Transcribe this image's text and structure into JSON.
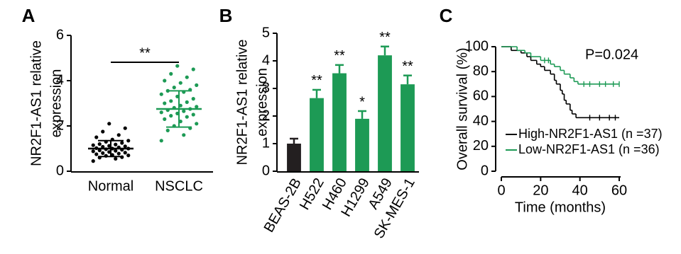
{
  "chart_data": [
    {
      "type": "dot",
      "panel": "A",
      "ylabel": [
        "NR2F1-AS1 relative",
        "expression"
      ],
      "categories": [
        "Normal",
        "NSCLC"
      ],
      "colors": [
        "#000000",
        "#1d9a55"
      ],
      "values": [
        [
          0.45,
          0.55,
          0.6,
          0.62,
          0.68,
          0.7,
          0.72,
          0.75,
          0.78,
          0.8,
          0.82,
          0.85,
          0.88,
          0.9,
          0.92,
          0.95,
          0.97,
          1.0,
          1.0,
          1.02,
          1.05,
          1.08,
          1.1,
          1.12,
          1.15,
          1.18,
          1.2,
          1.25,
          1.3,
          1.35,
          1.4,
          1.5,
          1.6,
          1.75,
          1.9,
          2.1
        ],
        [
          1.35,
          1.6,
          1.8,
          1.9,
          2.0,
          2.1,
          2.2,
          2.3,
          2.4,
          2.45,
          2.5,
          2.55,
          2.6,
          2.65,
          2.7,
          2.75,
          2.8,
          2.85,
          2.9,
          3.0,
          3.05,
          3.1,
          3.2,
          3.3,
          3.4,
          3.5,
          3.55,
          3.6,
          3.7,
          3.8,
          3.9,
          4.0,
          4.15,
          4.3,
          4.5,
          4.65
        ]
      ],
      "means": [
        1.0,
        2.75
      ],
      "sds": [
        0.35,
        0.8
      ],
      "annotation": "**",
      "ylim": [
        0,
        6
      ],
      "yticks": [
        0,
        2,
        4,
        6
      ]
    },
    {
      "type": "bar",
      "panel": "B",
      "ylabel": [
        "NR2F1-AS1 relative",
        "expression"
      ],
      "categories": [
        "BEAS-2B",
        "H522",
        "H460",
        "H1299",
        "A549",
        "SK-MES-1"
      ],
      "values": [
        1.0,
        2.65,
        3.55,
        1.9,
        4.2,
        3.15
      ],
      "errors": [
        0.18,
        0.3,
        0.3,
        0.28,
        0.32,
        0.32
      ],
      "colors": [
        "#231f20",
        "#1d9a55",
        "#1d9a55",
        "#1d9a55",
        "#1d9a55",
        "#1d9a55"
      ],
      "annotations": [
        null,
        "**",
        "**",
        "*",
        "**",
        "**"
      ],
      "ylim": [
        0,
        5
      ],
      "yticks": [
        0,
        1,
        2,
        3,
        4,
        5
      ]
    },
    {
      "type": "survival",
      "panel": "C",
      "xlabel": "Time (months)",
      "ylabel": "Overall survival (%)",
      "annotation": "P=0.024",
      "legend": "lower left",
      "series": [
        {
          "name": "High-NR2F1-AS1 (n =37)",
          "color": "#000000",
          "x": [
            0,
            5,
            10,
            13,
            15,
            18,
            20,
            22,
            25,
            27,
            28,
            30,
            31,
            32,
            33,
            35,
            36,
            38
          ],
          "values": [
            100,
            97,
            95,
            92,
            89,
            86,
            84,
            81,
            78,
            73,
            70,
            65,
            62,
            57,
            54,
            49,
            46,
            43
          ],
          "end": 60,
          "censored": [
            45,
            50,
            55,
            58
          ]
        },
        {
          "name": "Low-NR2F1-AS1 (n =36)",
          "color": "#1d9a55",
          "x": [
            0,
            8,
            12,
            15,
            20,
            25,
            27,
            30,
            32,
            35,
            37,
            39
          ],
          "values": [
            100,
            97,
            95,
            92,
            89,
            86,
            84,
            81,
            78,
            75,
            72,
            70
          ],
          "end": 60,
          "censored": [
            22,
            24,
            42,
            45,
            50,
            53,
            57,
            60
          ]
        }
      ],
      "xlim": [
        0,
        60
      ],
      "xticks": [
        0,
        20,
        40,
        60
      ],
      "ylim": [
        0,
        100
      ],
      "yticks": [
        0,
        20,
        40,
        60,
        80,
        100
      ]
    }
  ]
}
